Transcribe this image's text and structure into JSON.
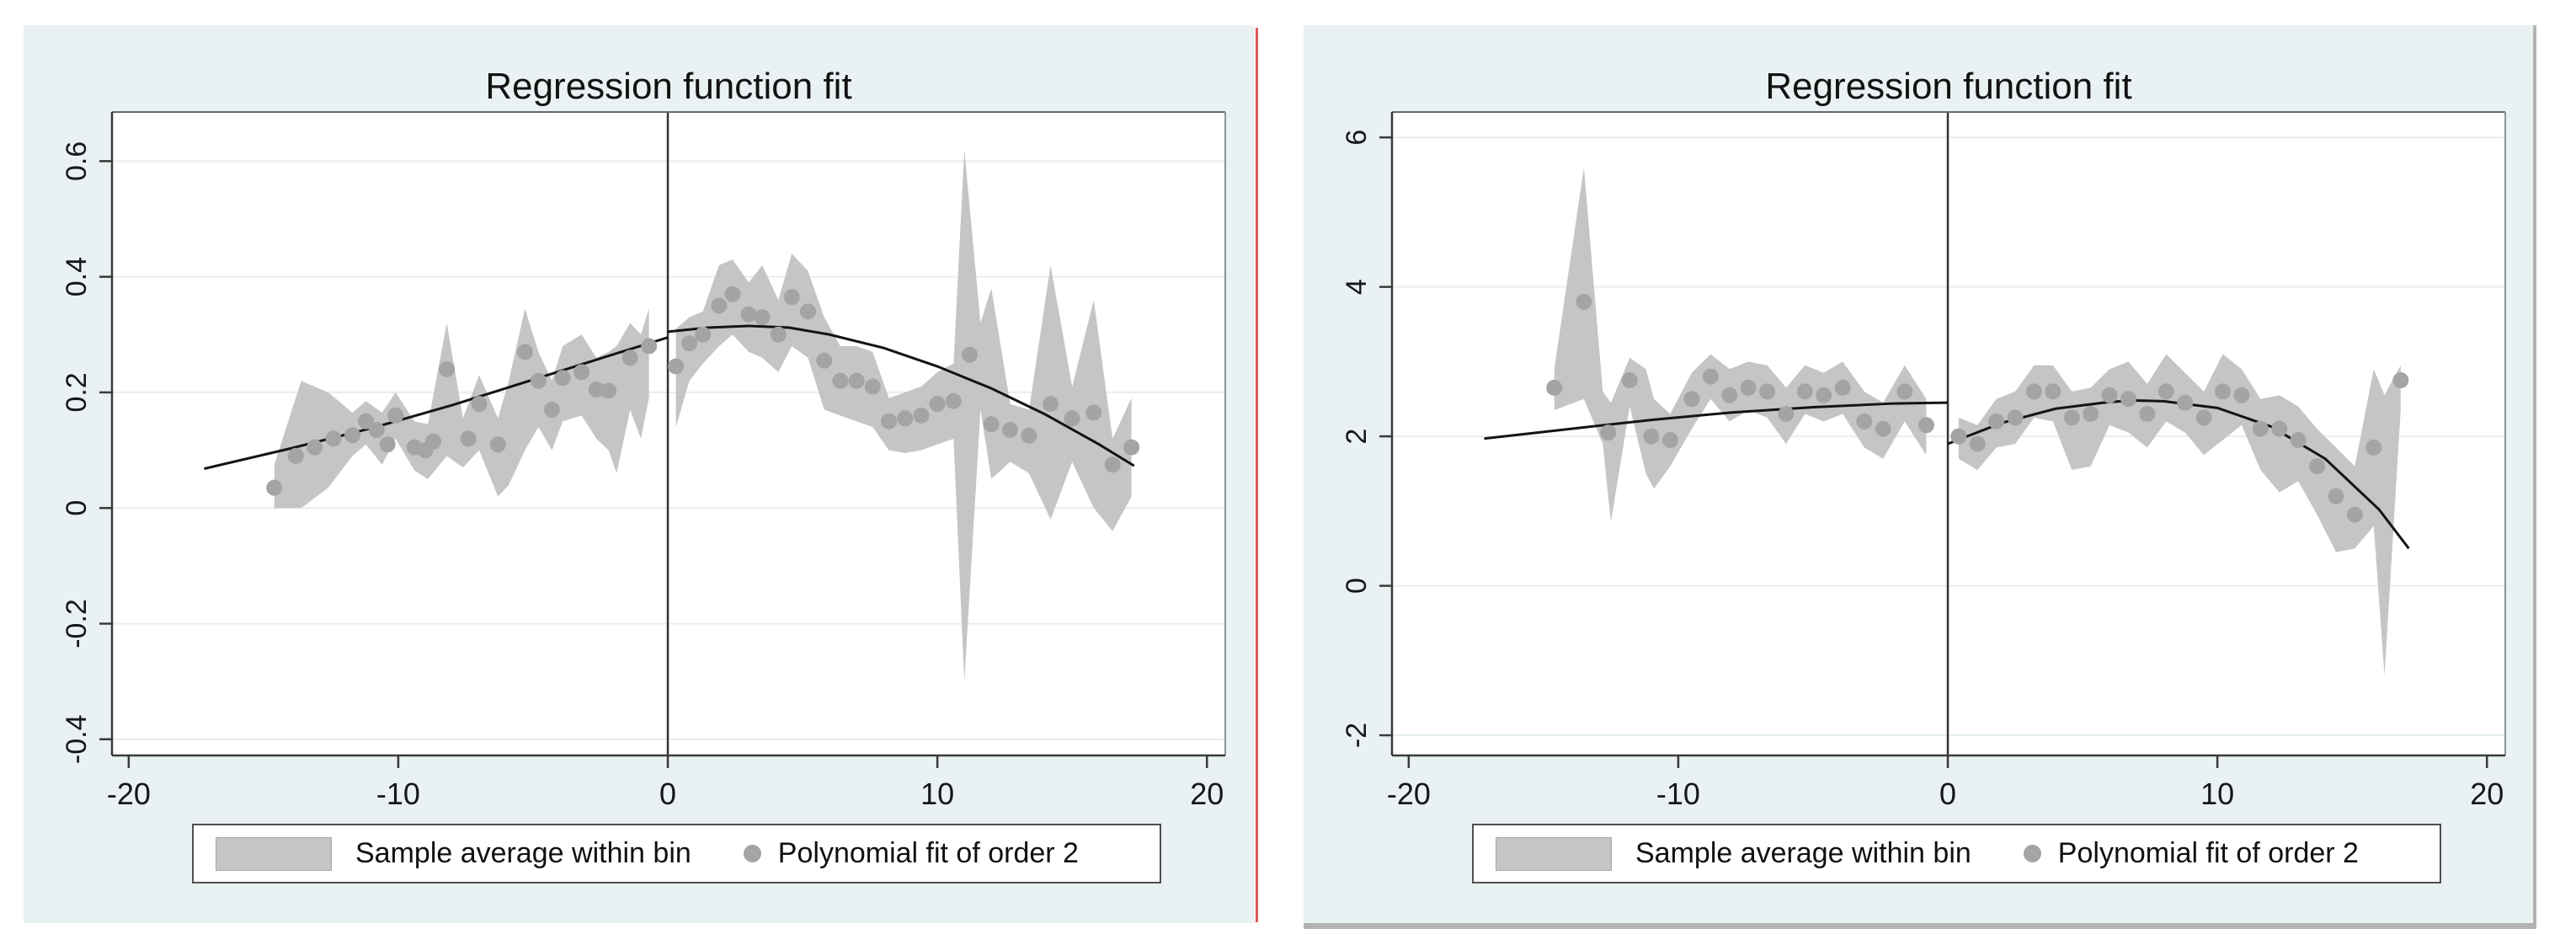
{
  "style": {
    "figure_background": "#eaf1f3",
    "plot_background": "#ffffff",
    "grid_color": "#e4eef2",
    "axis_color": "#3a3a3a",
    "frame_color": "#8a9499",
    "band_color": "#c5c5c5",
    "dot_color": "#a4a4a4",
    "fit_line_color": "#141414",
    "cutoff_line_color": "#333333",
    "tick_label_color": "#14181c",
    "divider_color": "#e25555"
  },
  "chart_data": [
    {
      "type": "area+scatter+line",
      "title": "Regression function fit",
      "xlabel": "",
      "ylabel": "",
      "grid": "horizontal",
      "legend_position": "bottom",
      "legend": [
        "Sample average within bin",
        "Polynomial fit of order 2"
      ],
      "cutoff": 0,
      "xlim": [
        -20.62,
        20.68
      ],
      "ylim": [
        -0.428,
        0.685
      ],
      "x_ticks": [
        -20,
        -10,
        0,
        10,
        20
      ],
      "x_tick_labels": [
        "-20",
        "-10",
        "0",
        "10",
        "20"
      ],
      "y_ticks": [
        0.6,
        0.4,
        0.2,
        0,
        -0.2,
        -0.4
      ],
      "y_tick_labels": [
        "0.6",
        "0.4",
        "0.2",
        "0",
        "-0.2",
        "-0.4"
      ],
      "band_left": {
        "x": [
          -14.6,
          -13.6,
          -12.6,
          -11.7,
          -11.2,
          -10.6,
          -10.1,
          -9.4,
          -8.9,
          -8.2,
          -7.6,
          -7.0,
          -6.3,
          -5.9,
          -5.3,
          -4.8,
          -4.3,
          -3.9,
          -3.2,
          -2.65,
          -2.2,
          -1.9,
          -1.4,
          -1.0,
          -0.7
        ],
        "top": [
          0.075,
          0.22,
          0.2,
          0.165,
          0.185,
          0.165,
          0.2,
          0.15,
          0.145,
          0.32,
          0.155,
          0.23,
          0.155,
          0.22,
          0.345,
          0.27,
          0.22,
          0.28,
          0.3,
          0.26,
          0.27,
          0.28,
          0.32,
          0.3,
          0.345
        ],
        "bottom": [
          0.0,
          0.0,
          0.035,
          0.09,
          0.11,
          0.075,
          0.12,
          0.065,
          0.05,
          0.09,
          0.07,
          0.1,
          0.02,
          0.04,
          0.1,
          0.14,
          0.1,
          0.15,
          0.16,
          0.12,
          0.1,
          0.06,
          0.17,
          0.12,
          0.19
        ]
      },
      "band_right": {
        "x": [
          0.3,
          0.8,
          1.3,
          1.9,
          2.4,
          3.0,
          3.5,
          4.1,
          4.6,
          5.2,
          5.8,
          6.4,
          7.0,
          7.6,
          8.2,
          8.8,
          9.4,
          10.0,
          10.6,
          11.0,
          11.6,
          12.0,
          12.7,
          13.4,
          14.2,
          15.0,
          15.8,
          16.5,
          17.2
        ],
        "top": [
          0.31,
          0.33,
          0.34,
          0.42,
          0.43,
          0.39,
          0.42,
          0.36,
          0.44,
          0.41,
          0.33,
          0.28,
          0.28,
          0.27,
          0.19,
          0.2,
          0.21,
          0.235,
          0.25,
          0.62,
          0.32,
          0.38,
          0.18,
          0.17,
          0.42,
          0.21,
          0.36,
          0.12,
          0.19
        ],
        "bottom": [
          0.14,
          0.22,
          0.25,
          0.28,
          0.3,
          0.27,
          0.26,
          0.235,
          0.28,
          0.26,
          0.17,
          0.16,
          0.15,
          0.14,
          0.1,
          0.095,
          0.1,
          0.11,
          0.12,
          -0.3,
          0.17,
          0.05,
          0.08,
          0.06,
          -0.02,
          0.08,
          0.0,
          -0.04,
          0.02
        ]
      },
      "dots_left": {
        "x": [
          -14.6,
          -13.8,
          -13.1,
          -12.4,
          -11.7,
          -11.2,
          -10.8,
          -10.4,
          -10.1,
          -9.4,
          -9.0,
          -8.7,
          -8.2,
          -7.4,
          -7.0,
          -6.3,
          -5.3,
          -4.8,
          -4.3,
          -3.9,
          -3.2,
          -2.65,
          -2.2,
          -1.4,
          -0.7
        ],
        "y": [
          0.035,
          0.09,
          0.105,
          0.12,
          0.126,
          0.15,
          0.135,
          0.11,
          0.16,
          0.105,
          0.1,
          0.115,
          0.24,
          0.12,
          0.18,
          0.11,
          0.27,
          0.22,
          0.17,
          0.225,
          0.235,
          0.205,
          0.203,
          0.26,
          0.28
        ]
      },
      "dots_right": {
        "x": [
          0.3,
          0.8,
          1.3,
          1.9,
          2.4,
          3.0,
          3.5,
          4.1,
          4.6,
          5.2,
          5.8,
          6.4,
          7.0,
          7.6,
          8.2,
          8.8,
          9.4,
          10.0,
          10.6,
          11.2,
          12.0,
          12.7,
          13.4,
          14.2,
          15.0,
          15.8,
          16.5,
          17.2
        ],
        "y": [
          0.245,
          0.285,
          0.3,
          0.35,
          0.37,
          0.335,
          0.33,
          0.3,
          0.365,
          0.34,
          0.255,
          0.22,
          0.22,
          0.21,
          0.15,
          0.155,
          0.16,
          0.18,
          0.185,
          0.265,
          0.145,
          0.135,
          0.125,
          0.18,
          0.155,
          0.165,
          0.075,
          0.105
        ]
      },
      "fit_left": {
        "x": [
          -17.2,
          -14,
          -11,
          -8,
          -5,
          -2,
          0
        ],
        "y": [
          0.068,
          0.103,
          0.138,
          0.178,
          0.222,
          0.266,
          0.295
        ]
      },
      "fit_right": {
        "x": [
          0,
          1.5,
          3,
          4.5,
          6,
          8,
          10,
          12,
          14,
          16,
          17.3
        ],
        "y": [
          0.305,
          0.312,
          0.315,
          0.312,
          0.3,
          0.277,
          0.245,
          0.207,
          0.162,
          0.11,
          0.073
        ]
      }
    },
    {
      "type": "area+scatter+line",
      "title": "Regression function fit",
      "xlabel": "",
      "ylabel": "",
      "grid": "horizontal",
      "legend_position": "bottom",
      "legend": [
        "Sample average within bin",
        "Polynomial fit of order 2"
      ],
      "cutoff": 0,
      "xlim": [
        -20.62,
        20.68
      ],
      "ylim": [
        -2.27,
        6.34
      ],
      "x_ticks": [
        -20,
        -10,
        0,
        10,
        20
      ],
      "x_tick_labels": [
        "-20",
        "-10",
        "0",
        "10",
        "20"
      ],
      "y_ticks": [
        6,
        4,
        2,
        0,
        -2
      ],
      "y_tick_labels": [
        "6",
        "4",
        "2",
        "0",
        "-2"
      ],
      "band_left": {
        "x": [
          -14.6,
          -13.5,
          -12.8,
          -12.5,
          -11.8,
          -11.2,
          -10.9,
          -10.3,
          -9.5,
          -8.8,
          -8.1,
          -7.4,
          -6.7,
          -6.0,
          -5.3,
          -4.6,
          -3.9,
          -3.1,
          -2.4,
          -1.6,
          -0.8
        ],
        "top": [
          2.9,
          5.6,
          2.6,
          2.45,
          3.05,
          2.9,
          2.5,
          2.3,
          2.85,
          3.1,
          2.9,
          3.0,
          2.95,
          2.65,
          2.95,
          2.85,
          3.0,
          2.6,
          2.45,
          2.95,
          2.5
        ],
        "bottom": [
          2.35,
          2.5,
          1.9,
          0.85,
          2.4,
          1.5,
          1.3,
          1.6,
          2.1,
          2.5,
          2.2,
          2.35,
          2.25,
          1.9,
          2.3,
          2.2,
          2.3,
          1.85,
          1.7,
          2.2,
          1.75
        ]
      },
      "band_right": {
        "x": [
          0.4,
          1.1,
          1.8,
          2.5,
          3.2,
          3.9,
          4.6,
          5.3,
          6.0,
          6.7,
          7.4,
          8.1,
          8.8,
          9.5,
          10.2,
          10.9,
          11.6,
          12.3,
          13.0,
          13.7,
          14.4,
          15.1,
          15.8,
          16.2,
          16.8
        ],
        "top": [
          2.25,
          2.15,
          2.5,
          2.6,
          2.95,
          2.95,
          2.6,
          2.65,
          2.9,
          3.0,
          2.7,
          3.1,
          2.85,
          2.6,
          3.1,
          2.9,
          2.5,
          2.55,
          2.4,
          2.1,
          1.85,
          1.6,
          2.9,
          2.55,
          2.95
        ],
        "bottom": [
          1.7,
          1.55,
          1.85,
          1.9,
          2.25,
          2.2,
          1.55,
          1.6,
          2.15,
          2.05,
          1.85,
          2.2,
          2.05,
          1.75,
          1.95,
          2.15,
          1.55,
          1.25,
          1.4,
          0.95,
          0.45,
          0.5,
          0.8,
          -1.2,
          2.35
        ]
      },
      "dots_left": {
        "x": [
          -14.6,
          -13.5,
          -12.6,
          -11.8,
          -11.0,
          -10.3,
          -9.5,
          -8.8,
          -8.1,
          -7.4,
          -6.7,
          -6.0,
          -5.3,
          -4.6,
          -3.9,
          -3.1,
          -2.4,
          -1.6,
          -0.8
        ],
        "y": [
          2.65,
          3.8,
          2.05,
          2.75,
          2.0,
          1.95,
          2.5,
          2.8,
          2.55,
          2.65,
          2.6,
          2.3,
          2.6,
          2.55,
          2.65,
          2.2,
          2.1,
          2.6,
          2.15
        ]
      },
      "dots_right": {
        "x": [
          0.4,
          1.1,
          1.8,
          2.5,
          3.2,
          3.9,
          4.6,
          5.3,
          6.0,
          6.7,
          7.4,
          8.1,
          8.8,
          9.5,
          10.2,
          10.9,
          11.6,
          12.3,
          13.0,
          13.7,
          14.4,
          15.1,
          15.8,
          16.8
        ],
        "y": [
          2.0,
          1.9,
          2.2,
          2.25,
          2.6,
          2.6,
          2.25,
          2.3,
          2.55,
          2.5,
          2.3,
          2.6,
          2.45,
          2.25,
          2.6,
          2.55,
          2.1,
          2.1,
          1.95,
          1.6,
          1.2,
          0.95,
          1.85,
          2.75
        ]
      },
      "fit_left": {
        "x": [
          -17.2,
          -14,
          -11,
          -8,
          -5,
          -2,
          0
        ],
        "y": [
          1.97,
          2.1,
          2.22,
          2.32,
          2.39,
          2.44,
          2.45
        ]
      },
      "fit_right": {
        "x": [
          0,
          2,
          4,
          6,
          7,
          8,
          10,
          12,
          14,
          16,
          17.1
        ],
        "y": [
          1.9,
          2.18,
          2.37,
          2.46,
          2.48,
          2.47,
          2.38,
          2.13,
          1.7,
          1.02,
          0.5
        ]
      }
    }
  ]
}
